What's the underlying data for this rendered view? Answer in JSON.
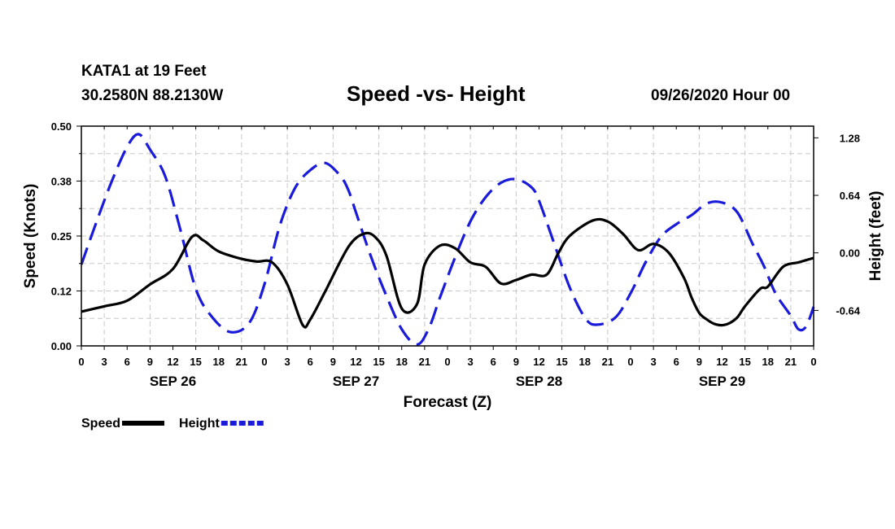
{
  "header": {
    "station": "KATA1 at 19 Feet",
    "coordinates": "30.2580N 88.2130W",
    "title": "Speed -vs- Height",
    "datetime": "09/26/2020 Hour 00"
  },
  "chart_data": {
    "type": "line",
    "title": "Speed -vs- Height",
    "xlabel": "Forecast (Z)",
    "ylabel": "Speed (Knots)",
    "y2label": "Height (feet)",
    "x_unit": "forecast hour",
    "xlim": [
      0,
      96
    ],
    "ylim": [
      0,
      0.5
    ],
    "y2lim": [
      -1.035,
      1.41
    ],
    "grid": true,
    "x_tick_hours": [
      0,
      3,
      6,
      9,
      12,
      15,
      18,
      21,
      24,
      27,
      30,
      33,
      36,
      39,
      42,
      45,
      48,
      51,
      54,
      57,
      60,
      63,
      66,
      69,
      72,
      75,
      78,
      81,
      84,
      87,
      90,
      93,
      96
    ],
    "x_tick_labels": [
      "0",
      "3",
      "6",
      "9",
      "12",
      "15",
      "18",
      "21",
      "0",
      "3",
      "6",
      "9",
      "12",
      "15",
      "18",
      "21",
      "0",
      "3",
      "6",
      "9",
      "12",
      "15",
      "18",
      "21",
      "0",
      "3",
      "6",
      "9",
      "12",
      "15",
      "18",
      "21",
      "0"
    ],
    "date_labels": [
      {
        "hour": 12,
        "label": "SEP 26"
      },
      {
        "hour": 36,
        "label": "SEP 27"
      },
      {
        "hour": 60,
        "label": "SEP 28"
      },
      {
        "hour": 84,
        "label": "SEP 29"
      }
    ],
    "y_ticks": [
      0.0,
      0.125,
      0.25,
      0.375,
      0.5
    ],
    "y_tick_labels": [
      "0.00",
      "0.12",
      "0.25",
      "0.38",
      "0.50"
    ],
    "y2_ticks": [
      -0.64,
      0.0,
      0.64,
      1.28
    ],
    "y2_tick_labels": [
      "-0.64",
      "0.00",
      "0.64",
      "1.28"
    ],
    "series": [
      {
        "name": "Speed",
        "axis": "left",
        "color": "#000000",
        "dash": "solid",
        "x": [
          0,
          3,
          6,
          9,
          12,
          14.5,
          16,
          18,
          21,
          23,
          25,
          27,
          29,
          30,
          32,
          35,
          37,
          38.5,
          40,
          42,
          44,
          45,
          47,
          49,
          51,
          53,
          55,
          57,
          59,
          61,
          62.5,
          64,
          67,
          69,
          71,
          73,
          75,
          77,
          79,
          80,
          81,
          82,
          83,
          84,
          85,
          86,
          87,
          89,
          90,
          92,
          94,
          95,
          96
        ],
        "y": [
          0.078,
          0.09,
          0.103,
          0.14,
          0.175,
          0.248,
          0.24,
          0.215,
          0.198,
          0.192,
          0.19,
          0.14,
          0.048,
          0.06,
          0.125,
          0.225,
          0.255,
          0.248,
          0.205,
          0.085,
          0.095,
          0.185,
          0.228,
          0.222,
          0.19,
          0.18,
          0.142,
          0.15,
          0.162,
          0.162,
          0.21,
          0.25,
          0.285,
          0.283,
          0.255,
          0.218,
          0.232,
          0.212,
          0.155,
          0.11,
          0.075,
          0.06,
          0.05,
          0.047,
          0.052,
          0.065,
          0.09,
          0.13,
          0.135,
          0.18,
          0.19,
          0.195,
          0.2
        ]
      },
      {
        "name": "Height",
        "axis": "right",
        "color": "#1a1adb",
        "dash": "dashed",
        "x": [
          0,
          2,
          4,
          6,
          7.5,
          9,
          11,
          13,
          15,
          17,
          19.5,
          22,
          24,
          26,
          28,
          30,
          32,
          34,
          35,
          36,
          38,
          40,
          42,
          44,
          45.5,
          47,
          49,
          51,
          53,
          55,
          57,
          59,
          60,
          62,
          64,
          66,
          67.5,
          70,
          72,
          74,
          76,
          78,
          80,
          82,
          84,
          86,
          88,
          89.5,
          91,
          93,
          94,
          95,
          96
        ],
        "y": [
          -0.13,
          0.35,
          0.8,
          1.18,
          1.32,
          1.15,
          0.85,
          0.25,
          -0.4,
          -0.7,
          -0.88,
          -0.78,
          -0.35,
          0.3,
          0.72,
          0.92,
          1.0,
          0.85,
          0.7,
          0.45,
          -0.05,
          -0.48,
          -0.85,
          -1.02,
          -0.85,
          -0.5,
          -0.05,
          0.35,
          0.62,
          0.78,
          0.82,
          0.73,
          0.58,
          0.1,
          -0.38,
          -0.72,
          -0.8,
          -0.72,
          -0.45,
          -0.1,
          0.18,
          0.32,
          0.42,
          0.55,
          0.56,
          0.45,
          0.1,
          -0.15,
          -0.45,
          -0.7,
          -0.85,
          -0.82,
          -0.6
        ]
      }
    ],
    "legend": [
      {
        "label": "Speed",
        "color": "#000000",
        "dash": "solid"
      },
      {
        "label": "Height",
        "color": "#1a1adb",
        "dash": "dashed"
      }
    ],
    "legend_position": "bottom-left"
  }
}
